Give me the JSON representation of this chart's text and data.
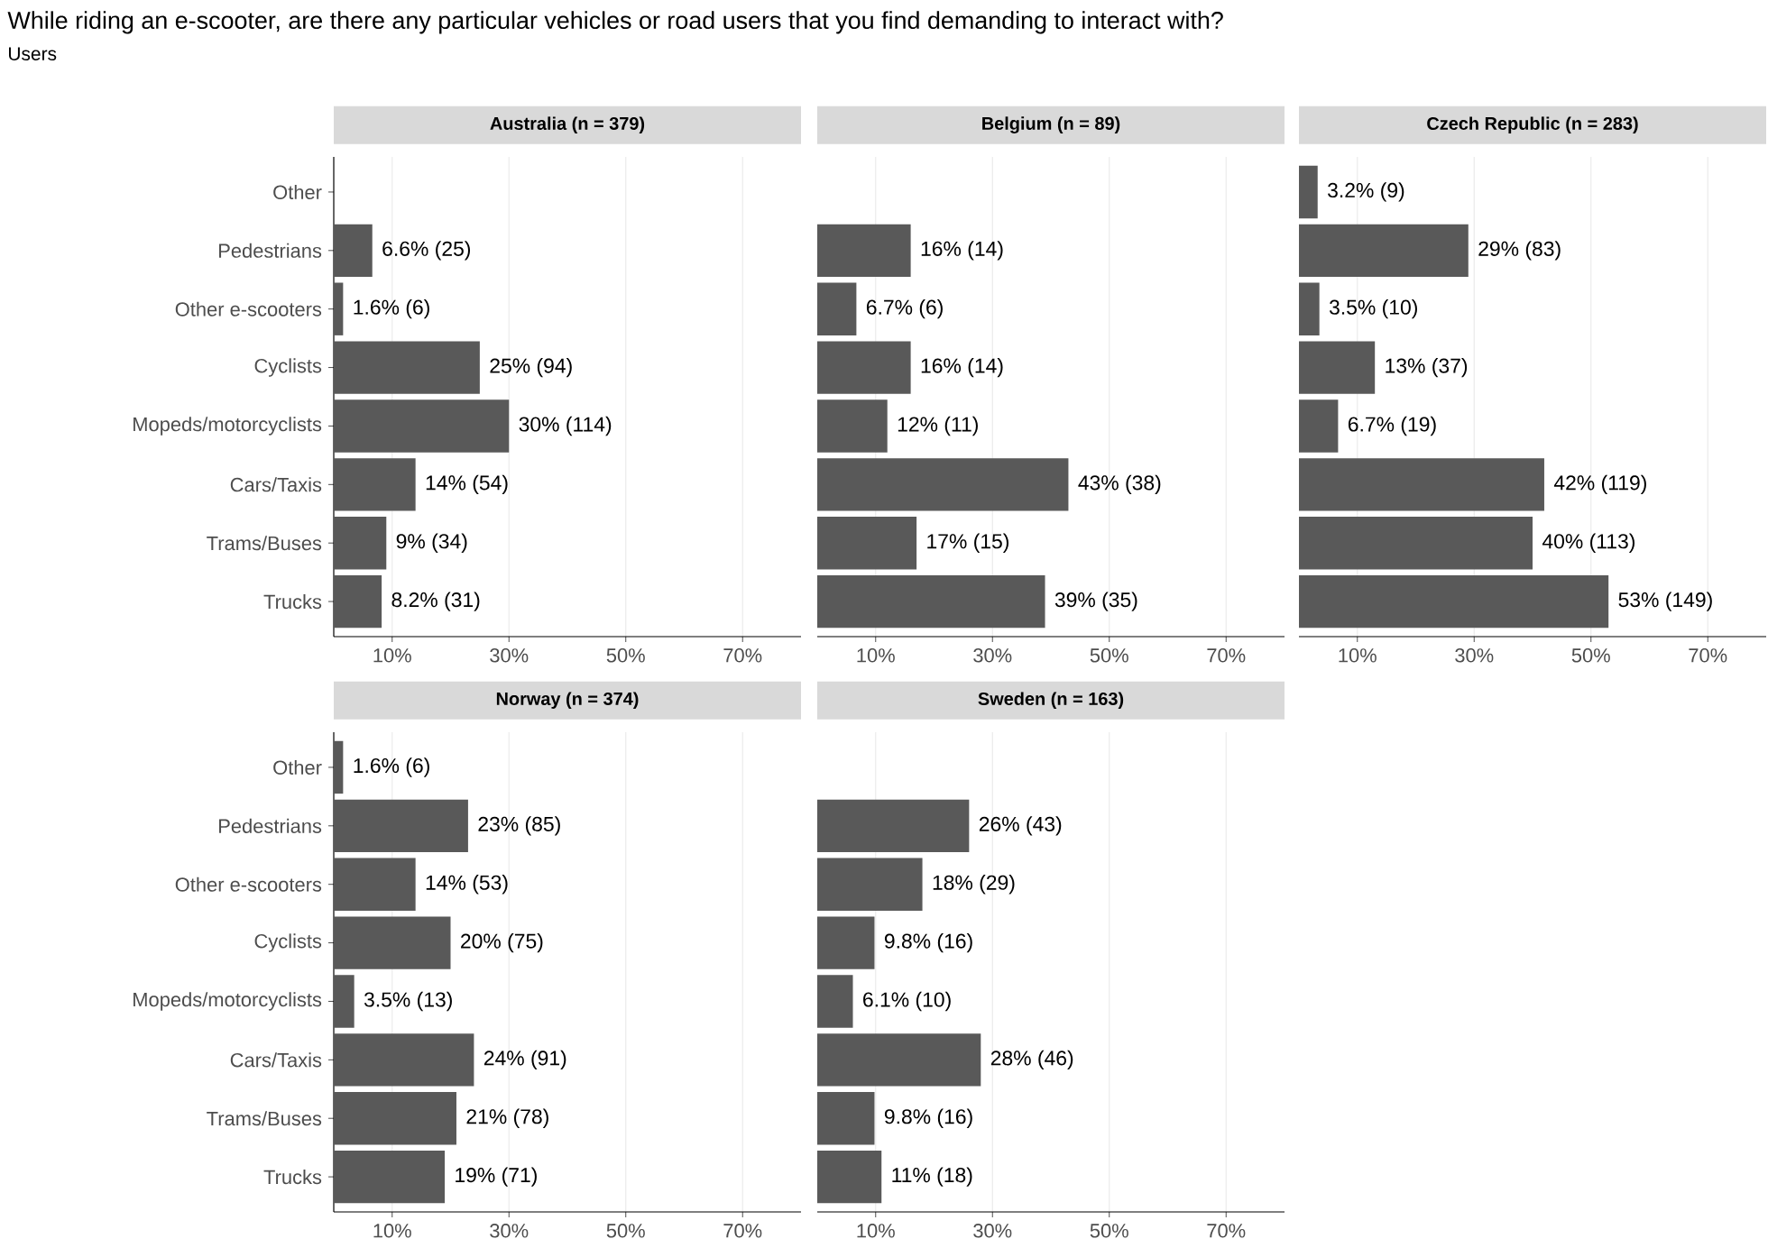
{
  "chart_data": [
    {
      "type": "bar",
      "orientation": "horizontal",
      "title": "Australia (n = 379)",
      "annotations": [
        "While riding an e-scooter, are there any particular vehicles or road users that you find demanding to interact with?",
        "Users"
      ],
      "categories": [
        "Other",
        "Pedestrians",
        "Other e-scooters",
        "Cyclists",
        "Mopeds/motorcyclists",
        "Cars/Taxis",
        "Trams/Buses",
        "Trucks"
      ],
      "values": [
        null,
        6.6,
        1.6,
        25,
        30,
        14,
        9,
        8.2
      ],
      "value_labels": [
        null,
        "6.6% (25)",
        "1.6% (6)",
        "25% (94)",
        "30% (114)",
        "14% (54)",
        "9% (34)",
        "8.2% (31)"
      ],
      "color": "#595959",
      "xlim": [
        0,
        80
      ],
      "xticks": [
        {
          "value": 10,
          "label": "10%"
        },
        {
          "value": 30,
          "label": "30%"
        },
        {
          "value": 50,
          "label": "50%"
        },
        {
          "value": 70,
          "label": "70%"
        }
      ],
      "grid": "x"
    },
    {
      "type": "bar",
      "orientation": "horizontal",
      "title": "Belgium (n = 89)",
      "categories": [
        null,
        null,
        null,
        null,
        null,
        null,
        null,
        null
      ],
      "values": [
        null,
        16,
        6.7,
        16,
        12,
        43,
        17,
        39
      ],
      "value_labels": [
        null,
        "16% (14)",
        "6.7% (6)",
        "16% (14)",
        "12% (11)",
        "43% (38)",
        "17% (15)",
        "39% (35)"
      ],
      "color": "#595959",
      "xlim": [
        0,
        80
      ],
      "xticks": [
        {
          "value": 10,
          "label": "10%"
        },
        {
          "value": 30,
          "label": "30%"
        },
        {
          "value": 50,
          "label": "50%"
        },
        {
          "value": 70,
          "label": "70%"
        }
      ],
      "grid": "x",
      "tick_labels": "x"
    },
    {
      "type": "bar",
      "orientation": "horizontal",
      "title": "Czech Republic (n = 283)",
      "categories": [
        null,
        null,
        null,
        null,
        null,
        null,
        null,
        null
      ],
      "values": [
        3.2,
        29,
        3.5,
        13,
        6.7,
        42,
        40,
        53
      ],
      "value_labels": [
        "3.2% (9)",
        "29% (83)",
        "3.5% (10)",
        "13% (37)",
        "6.7% (19)",
        "42% (119)",
        "40% (113)",
        "53% (149)"
      ],
      "color": "#595959",
      "xlim": [
        0,
        80
      ],
      "xticks": [
        {
          "value": 10,
          "label": "10%"
        },
        {
          "value": 30,
          "label": "30%"
        },
        {
          "value": 50,
          "label": "50%"
        },
        {
          "value": 70,
          "label": "70%"
        }
      ],
      "grid": "x",
      "tick_labels": "x"
    },
    {
      "type": "bar",
      "orientation": "horizontal",
      "title": "Norway (n = 374)",
      "categories": [
        "Other",
        "Pedestrians",
        "Other e-scooters",
        "Cyclists",
        "Mopeds/motorcyclists",
        "Cars/Taxis",
        "Trams/Buses",
        "Trucks"
      ],
      "values": [
        1.6,
        23,
        14,
        20,
        3.5,
        24,
        21,
        19
      ],
      "value_labels": [
        "1.6% (6)",
        "23% (85)",
        "14% (53)",
        "20% (75)",
        "3.5% (13)",
        "24% (91)",
        "21% (78)",
        "19% (71)"
      ],
      "color": "#595959",
      "xlim": [
        0,
        80
      ],
      "xticks": [
        {
          "value": 10,
          "label": "10%"
        },
        {
          "value": 30,
          "label": "30%"
        },
        {
          "value": 50,
          "label": "50%"
        },
        {
          "value": 70,
          "label": "70%"
        }
      ],
      "grid": "x"
    },
    {
      "type": "bar",
      "orientation": "horizontal",
      "title": "Sweden (n = 163)",
      "categories": [
        null,
        null,
        null,
        null,
        null,
        null,
        null,
        null
      ],
      "values": [
        null,
        26,
        18,
        9.8,
        6.1,
        28,
        9.8,
        11
      ],
      "value_labels": [
        null,
        "26% (43)",
        "18% (29)",
        "9.8% (16)",
        "6.1% (10)",
        "28% (46)",
        "9.8% (16)",
        "11% (18)"
      ],
      "color": "#595959",
      "xlim": [
        0,
        80
      ],
      "xticks": [
        {
          "value": 10,
          "label": "10%"
        },
        {
          "value": 30,
          "label": "30%"
        },
        {
          "value": 50,
          "label": "50%"
        },
        {
          "value": 70,
          "label": "70%"
        }
      ],
      "grid": "x",
      "tick_labels": "x"
    }
  ]
}
